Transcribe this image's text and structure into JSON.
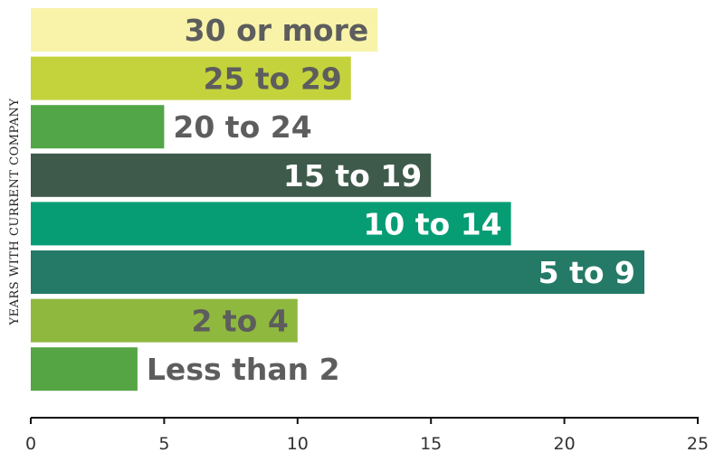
{
  "chart_data": {
    "type": "bar",
    "orientation": "horizontal",
    "ylabel": "YEARS WITH CURRENT COMPANY",
    "xlim": [
      0,
      25
    ],
    "xticks": [
      0,
      5,
      10,
      15,
      20,
      25
    ],
    "grid": false,
    "categories": [
      "30 or more",
      "25 to 29",
      "20 to 24",
      "15 to 19",
      "10 to 14",
      "5 to 9",
      "2 to 4",
      "Less than 2"
    ],
    "values": [
      13,
      12,
      5,
      15,
      18,
      23,
      10,
      4
    ],
    "colors": [
      "#f8f3a9",
      "#c4d23c",
      "#52a648",
      "#3d5a4a",
      "#079d74",
      "#247a66",
      "#8fb83f",
      "#55a545"
    ],
    "label_colors": [
      "#5d5d5d",
      "#5d5d5d",
      "#5d5d5d",
      "#ffffff",
      "#ffffff",
      "#ffffff",
      "#5d5d5d",
      "#5d5d5d"
    ],
    "label_inside": [
      true,
      true,
      false,
      true,
      true,
      true,
      true,
      false
    ]
  }
}
